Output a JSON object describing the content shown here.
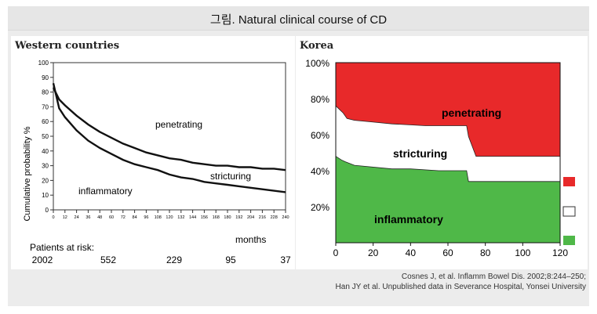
{
  "title": "그림. Natural clinical course of CD",
  "western": {
    "panel_title": "Western countries",
    "ylabel": "Cumulative probability %",
    "xlabel": "months",
    "labels": {
      "top": "penetrating",
      "middle": "stricturing",
      "bottom": "inflammatory"
    },
    "risk_label": "Patients at risk:",
    "risk_values": [
      "2002",
      "552",
      "229",
      "95",
      "37"
    ]
  },
  "korea": {
    "panel_title": "Korea",
    "labels": {
      "top": "penetrating",
      "middle": "stricturing",
      "bottom": "inflammatory"
    },
    "colors": {
      "penetrating": "#e8292a",
      "stricturing": "#ffffff",
      "inflammatory": "#4fb848"
    }
  },
  "citation": {
    "line1": "Cosnes J, et al. Inflamm Bowel Dis. 2002;8:244–250;",
    "line2": "Han JY et al. Unpublished data in Severance Hospital, Yonsei University"
  },
  "chart_data": [
    {
      "type": "line",
      "panel": "Western countries",
      "xlabel": "months",
      "ylabel": "Cumulative probability %",
      "xlim": [
        0,
        240
      ],
      "ylim": [
        0,
        100
      ],
      "x_ticks": [
        0,
        12,
        24,
        36,
        48,
        60,
        72,
        84,
        96,
        108,
        120,
        132,
        144,
        156,
        168,
        180,
        192,
        204,
        216,
        228,
        240
      ],
      "y_ticks": [
        0,
        10,
        20,
        30,
        40,
        50,
        60,
        70,
        80,
        90,
        100
      ],
      "series": [
        {
          "name": "inflammatory/stricturing",
          "x": [
            0,
            6,
            12,
            24,
            36,
            48,
            60,
            72,
            84,
            96,
            108,
            120,
            132,
            144,
            156,
            168,
            180,
            192,
            204,
            216,
            228,
            240
          ],
          "y": [
            83,
            75,
            71,
            64,
            58,
            53,
            49,
            45,
            42,
            39,
            37,
            35,
            34,
            32,
            31,
            30,
            30,
            29,
            29,
            28,
            28,
            27
          ]
        },
        {
          "name": "stricturing/penetrating",
          "x": [
            0,
            6,
            12,
            24,
            36,
            48,
            60,
            72,
            84,
            96,
            108,
            120,
            132,
            144,
            156,
            168,
            180,
            192,
            204,
            216,
            228,
            240
          ],
          "y": [
            86,
            69,
            63,
            54,
            47,
            42,
            38,
            34,
            31,
            29,
            27,
            24,
            22,
            21,
            19,
            18,
            17,
            16,
            15,
            14,
            13,
            12
          ]
        }
      ],
      "risk_table": {
        "months": [
          0,
          60,
          120,
          180,
          240
        ],
        "values": [
          2002,
          552,
          229,
          95,
          37
        ]
      }
    },
    {
      "type": "area",
      "panel": "Korea",
      "xlim": [
        0,
        120
      ],
      "ylim": [
        0,
        100
      ],
      "x_ticks": [
        0,
        20,
        40,
        60,
        80,
        100,
        120
      ],
      "y_ticks": [
        "20%",
        "40%",
        "60%",
        "80%",
        "100%"
      ],
      "series": [
        {
          "name": "inflammatory",
          "x": [
            0,
            3,
            5,
            10,
            30,
            40,
            55,
            70,
            71,
            120
          ],
          "y": [
            48,
            46,
            45,
            43,
            41,
            41,
            40,
            40,
            34,
            34
          ]
        },
        {
          "name": "stricturing",
          "x": [
            0,
            4,
            6,
            10,
            20,
            30,
            48,
            70,
            71,
            75,
            120
          ],
          "y": [
            76,
            72,
            69,
            68,
            67,
            66,
            65,
            65,
            59,
            48,
            48
          ]
        },
        {
          "name": "penetrating",
          "x": [
            0,
            120
          ],
          "y": [
            100,
            100
          ]
        }
      ]
    }
  ]
}
